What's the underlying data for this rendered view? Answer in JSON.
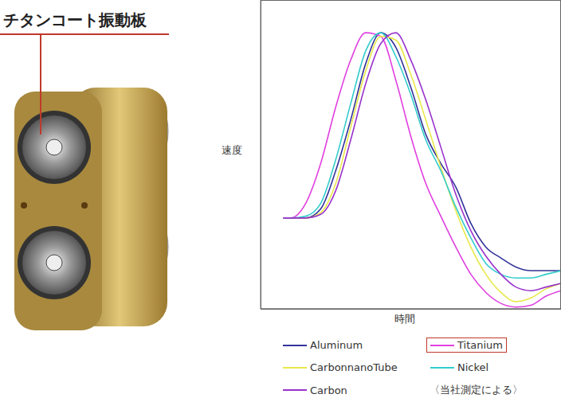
{
  "chart_data": {
    "type": "line",
    "xlabel": "時間",
    "ylabel": "速度",
    "annotations": [
      "チタンコート振動板",
      "〈当社測定による〉"
    ],
    "x": [
      1.5,
      2,
      3,
      4,
      5,
      6,
      7,
      8,
      9,
      10,
      11,
      12,
      13,
      14,
      15,
      16,
      17,
      18,
      19,
      20
    ],
    "xlim": [
      0,
      20
    ],
    "ylim": [
      0,
      17
    ],
    "yticks": [
      0,
      1,
      2,
      3,
      4,
      5,
      6,
      7,
      8,
      9,
      10,
      11,
      12,
      13,
      14,
      15,
      16,
      17
    ],
    "grid": true,
    "tick_labels": false,
    "series": [
      {
        "name": "Aluminum",
        "color": "#333399",
        "values": [
          5.0,
          5.0,
          5.0,
          5.5,
          7.6,
          10.4,
          13.5,
          15.2,
          14.4,
          12.2,
          9.6,
          8.0,
          6.7,
          4.7,
          3.4,
          2.8,
          2.3,
          2.1,
          2.1,
          2.1
        ]
      },
      {
        "name": "Titanium",
        "color": "#e040e0",
        "values": [
          5.0,
          5.0,
          5.8,
          8.0,
          11.1,
          13.7,
          15.2,
          15.0,
          12.6,
          9.5,
          6.9,
          5.1,
          3.4,
          1.9,
          0.9,
          0.3,
          0.1,
          0.2,
          0.7,
          1.0
        ]
      },
      {
        "name": "CarbonnanoTube",
        "color": "#e8e84a",
        "values": [
          5.0,
          5.0,
          5.0,
          5.3,
          6.9,
          10.0,
          13.1,
          15.0,
          14.8,
          12.9,
          10.4,
          7.8,
          5.4,
          3.4,
          1.9,
          0.9,
          0.4,
          0.6,
          1.1,
          1.4
        ]
      },
      {
        "name": "Nickel",
        "color": "#33cccc",
        "values": [
          5.0,
          5.0,
          5.1,
          5.8,
          8.2,
          11.3,
          14.2,
          15.2,
          13.9,
          11.8,
          9.3,
          7.6,
          5.6,
          3.9,
          2.5,
          1.9,
          1.7,
          1.7,
          1.9,
          2.1
        ]
      },
      {
        "name": "Carbon",
        "color": "#9933cc",
        "values": [
          5.0,
          5.0,
          5.0,
          5.2,
          6.5,
          9.3,
          12.4,
          14.6,
          15.2,
          13.7,
          11.5,
          8.9,
          6.3,
          4.3,
          2.9,
          1.9,
          1.2,
          1.0,
          1.2,
          1.4
        ]
      }
    ]
  }
}
